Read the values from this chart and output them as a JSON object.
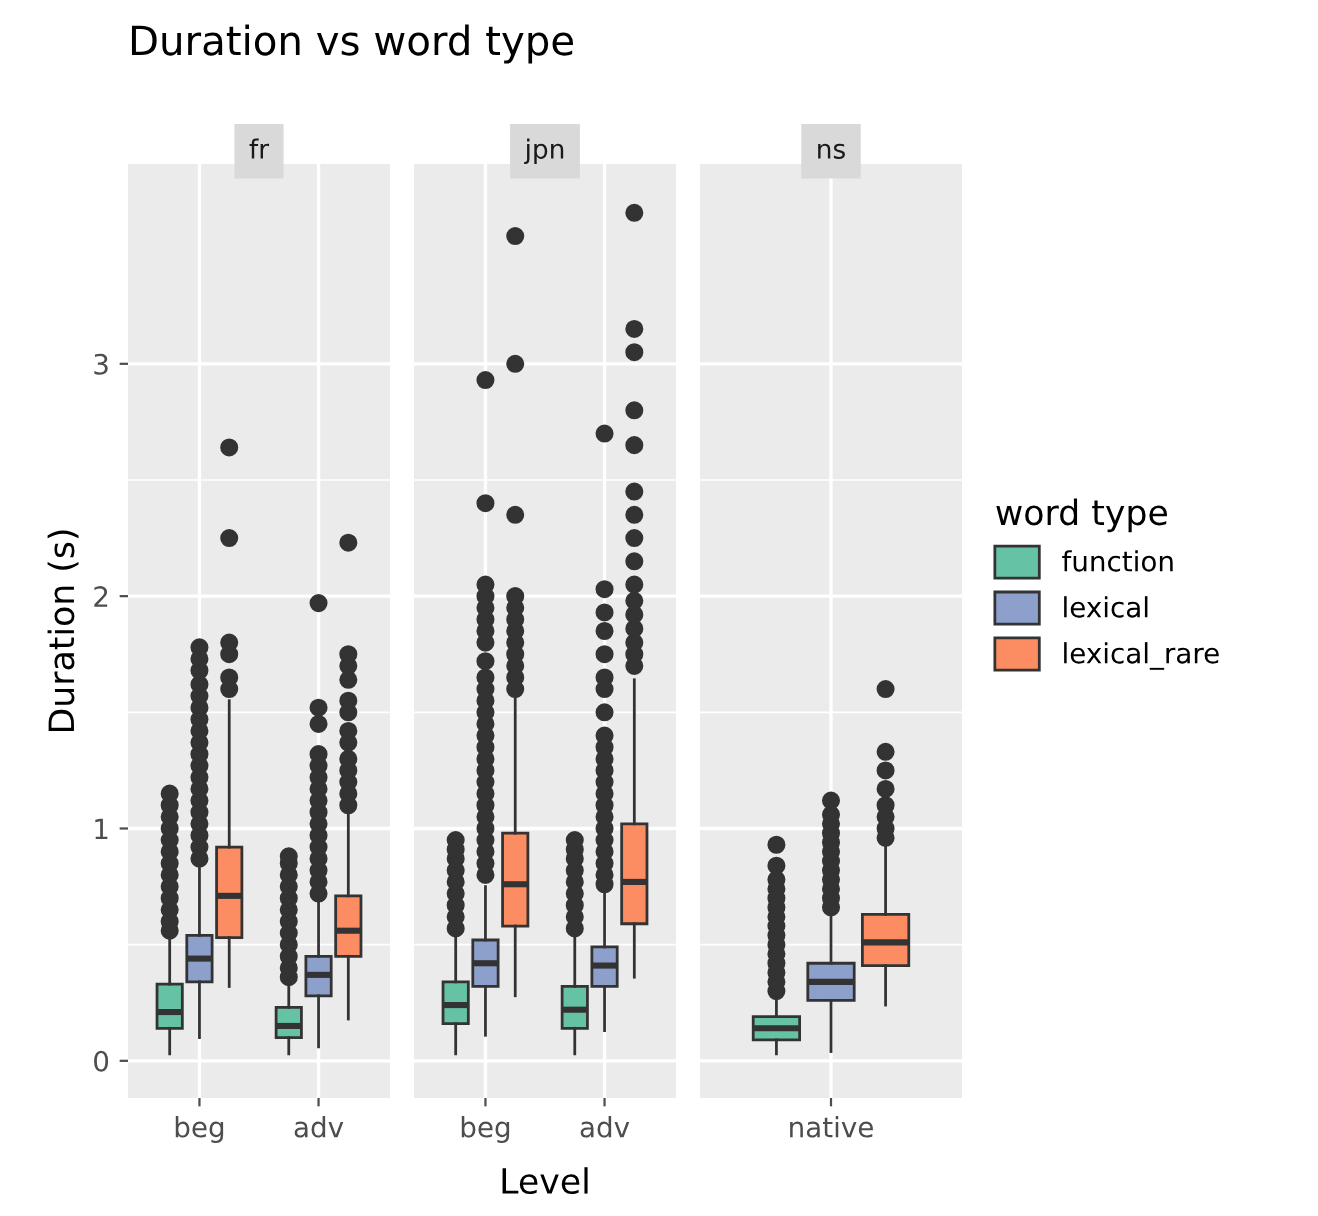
{
  "chart_data": [
    {
      "type": "box",
      "title": "Duration vs word type",
      "subtitle": "fr",
      "ylabel": "Duration (s)",
      "categories": [
        "beg",
        "adv"
      ],
      "ylim": [
        -0.16,
        3.86
      ],
      "yticks": [
        0,
        1,
        2,
        3
      ],
      "grid": true,
      "series": [
        {
          "color": "#66c2a5",
          "boxes": [
            {
              "low": 0.03,
              "q1": 0.14,
              "median": 0.21,
              "q3": 0.33,
              "high": 0.54,
              "outliers": [
                0.56,
                0.6,
                0.65,
                0.7,
                0.75,
                0.8,
                0.85,
                0.9,
                0.95,
                1.0,
                1.05,
                1.1,
                1.15
              ]
            },
            {
              "low": 0.03,
              "q1": 0.1,
              "median": 0.15,
              "q3": 0.23,
              "high": 0.34,
              "outliers": [
                0.36,
                0.4,
                0.45,
                0.5,
                0.55,
                0.6,
                0.65,
                0.7,
                0.75,
                0.8,
                0.85,
                0.88
              ]
            }
          ]
        },
        {
          "color": "#8da0cb",
          "boxes": [
            {
              "low": 0.1,
              "q1": 0.34,
              "median": 0.44,
              "q3": 0.54,
              "high": 0.84,
              "outliers": [
                0.87,
                0.92,
                0.97,
                1.02,
                1.07,
                1.12,
                1.17,
                1.22,
                1.27,
                1.32,
                1.37,
                1.42,
                1.47,
                1.52,
                1.57,
                1.62,
                1.68,
                1.73,
                1.78
              ]
            },
            {
              "low": 0.06,
              "q1": 0.28,
              "median": 0.37,
              "q3": 0.45,
              "high": 0.69,
              "outliers": [
                0.72,
                0.77,
                0.82,
                0.87,
                0.92,
                0.97,
                1.02,
                1.07,
                1.12,
                1.17,
                1.22,
                1.27,
                1.32,
                1.45,
                1.52,
                1.97
              ]
            }
          ]
        },
        {
          "color": "#fc8d62",
          "boxes": [
            {
              "low": 0.32,
              "q1": 0.53,
              "median": 0.71,
              "q3": 0.92,
              "high": 1.55,
              "outliers": [
                1.6,
                1.65,
                1.75,
                1.8,
                2.25,
                2.64
              ]
            },
            {
              "low": 0.18,
              "q1": 0.45,
              "median": 0.56,
              "q3": 0.71,
              "high": 1.06,
              "outliers": [
                1.1,
                1.15,
                1.2,
                1.25,
                1.3,
                1.37,
                1.42,
                1.5,
                1.55,
                1.64,
                1.7,
                1.75,
                2.23
              ]
            }
          ]
        }
      ]
    },
    {
      "type": "box",
      "subtitle": "jpn",
      "xlabel": "Level",
      "categories": [
        "beg",
        "adv"
      ],
      "ylim": [
        -0.16,
        3.86
      ],
      "yticks": [
        0,
        1,
        2,
        3
      ],
      "tick_labels": "x",
      "grid": true,
      "series": [
        {
          "color": "#66c2a5",
          "boxes": [
            {
              "low": 0.03,
              "q1": 0.16,
              "median": 0.24,
              "q3": 0.34,
              "high": 0.54,
              "outliers": [
                0.57,
                0.62,
                0.67,
                0.72,
                0.77,
                0.82,
                0.87,
                0.91,
                0.95
              ]
            },
            {
              "low": 0.03,
              "q1": 0.14,
              "median": 0.22,
              "q3": 0.32,
              "high": 0.54,
              "outliers": [
                0.57,
                0.62,
                0.67,
                0.72,
                0.77,
                0.82,
                0.87,
                0.91,
                0.95
              ]
            }
          ]
        },
        {
          "color": "#8da0cb",
          "boxes": [
            {
              "low": 0.11,
              "q1": 0.32,
              "median": 0.42,
              "q3": 0.52,
              "high": 0.75,
              "outliers": [
                0.8,
                0.85,
                0.9,
                0.95,
                1.0,
                1.05,
                1.1,
                1.15,
                1.2,
                1.25,
                1.3,
                1.35,
                1.4,
                1.45,
                1.5,
                1.55,
                1.6,
                1.65,
                1.72,
                1.8,
                1.85,
                1.9,
                1.95,
                2.0,
                2.05,
                2.4,
                2.93
              ]
            },
            {
              "low": 0.13,
              "q1": 0.32,
              "median": 0.41,
              "q3": 0.49,
              "high": 0.72,
              "outliers": [
                0.76,
                0.8,
                0.85,
                0.9,
                0.95,
                1.0,
                1.05,
                1.1,
                1.15,
                1.2,
                1.25,
                1.3,
                1.35,
                1.4,
                1.5,
                1.6,
                1.65,
                1.75,
                1.85,
                1.93,
                2.03,
                2.7
              ]
            }
          ]
        },
        {
          "color": "#fc8d62",
          "boxes": [
            {
              "low": 0.28,
              "q1": 0.58,
              "median": 0.76,
              "q3": 0.98,
              "high": 1.57,
              "outliers": [
                1.6,
                1.65,
                1.7,
                1.75,
                1.8,
                1.85,
                1.9,
                1.95,
                2.0,
                2.35,
                3.0,
                3.55
              ]
            },
            {
              "low": 0.36,
              "q1": 0.59,
              "median": 0.77,
              "q3": 1.02,
              "high": 1.64,
              "outliers": [
                1.7,
                1.75,
                1.8,
                1.86,
                1.92,
                1.98,
                2.05,
                2.15,
                2.25,
                2.35,
                2.45,
                2.65,
                2.8,
                3.05,
                3.15,
                3.65
              ]
            }
          ]
        }
      ]
    },
    {
      "type": "box",
      "subtitle": "ns",
      "categories": [
        "native"
      ],
      "ylim": [
        -0.16,
        3.86
      ],
      "yticks": [
        0,
        1,
        2,
        3
      ],
      "tick_labels": "x",
      "grid": true,
      "legend": "right",
      "legend_title": "word type",
      "series": [
        {
          "name": "function",
          "color": "#66c2a5",
          "boxes": [
            {
              "low": 0.03,
              "q1": 0.09,
              "median": 0.14,
              "q3": 0.19,
              "high": 0.28,
              "outliers": [
                0.3,
                0.34,
                0.38,
                0.42,
                0.46,
                0.5,
                0.54,
                0.58,
                0.62,
                0.66,
                0.7,
                0.74,
                0.78,
                0.84,
                0.93
              ]
            }
          ]
        },
        {
          "name": "lexical",
          "color": "#8da0cb",
          "boxes": [
            {
              "low": 0.04,
              "q1": 0.26,
              "median": 0.34,
              "q3": 0.42,
              "high": 0.63,
              "outliers": [
                0.66,
                0.7,
                0.74,
                0.78,
                0.82,
                0.86,
                0.9,
                0.94,
                0.98,
                1.02,
                1.06,
                1.12
              ]
            }
          ]
        },
        {
          "name": "lexical_rare",
          "color": "#fc8d62",
          "boxes": [
            {
              "low": 0.24,
              "q1": 0.41,
              "median": 0.51,
              "q3": 0.63,
              "high": 0.92,
              "outliers": [
                0.96,
                1.0,
                1.05,
                1.1,
                1.17,
                1.25,
                1.33,
                1.6
              ]
            }
          ]
        }
      ]
    }
  ]
}
